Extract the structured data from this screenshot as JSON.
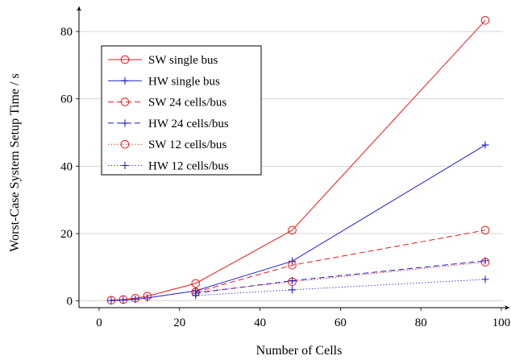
{
  "chart_data": {
    "type": "line",
    "xlabel": "Number of Cells",
    "ylabel": "Worst-Case System Setup Time / s",
    "xlim": [
      -5,
      102
    ],
    "ylim": [
      -2,
      86
    ],
    "xticks": [
      0,
      20,
      40,
      60,
      80,
      100
    ],
    "yticks": [
      0,
      20,
      40,
      60,
      80
    ],
    "grid": "horizontal",
    "legend_position": "top-left",
    "series": [
      {
        "name": "SW single bus",
        "color": "#e8191b",
        "style": "solid",
        "marker": "circle",
        "x": [
          3,
          6,
          9,
          12,
          24,
          48,
          96
        ],
        "y": [
          0.2,
          0.4,
          0.8,
          1.4,
          5.2,
          21.0,
          83.3
        ]
      },
      {
        "name": "HW single bus",
        "color": "#1c1ccc",
        "style": "solid",
        "marker": "plus",
        "x": [
          3,
          6,
          9,
          12,
          24,
          48,
          96
        ],
        "y": [
          0.1,
          0.3,
          0.5,
          0.9,
          3.0,
          11.8,
          46.3
        ]
      },
      {
        "name": "SW 24 cells/bus",
        "color": "#e8191b",
        "style": "dashed",
        "marker": "circle",
        "x": [
          24,
          48,
          96
        ],
        "y": [
          2.6,
          10.6,
          21.0
        ]
      },
      {
        "name": "HW 24 cells/bus",
        "color": "#1c1ccc",
        "style": "dashed",
        "marker": "plus",
        "x": [
          24,
          48,
          96
        ],
        "y": [
          2.3,
          6.0,
          11.9
        ]
      },
      {
        "name": "SW 12 cells/bus",
        "color": "#e8191b",
        "style": "dotted",
        "marker": "circle",
        "x": [
          24,
          48,
          96
        ],
        "y": [
          2.6,
          5.7,
          11.5
        ]
      },
      {
        "name": "HW 12 cells/bus",
        "color": "#1c1ccc",
        "style": "dotted",
        "marker": "plus",
        "x": [
          24,
          48,
          96
        ],
        "y": [
          1.6,
          3.3,
          6.4
        ]
      }
    ]
  }
}
